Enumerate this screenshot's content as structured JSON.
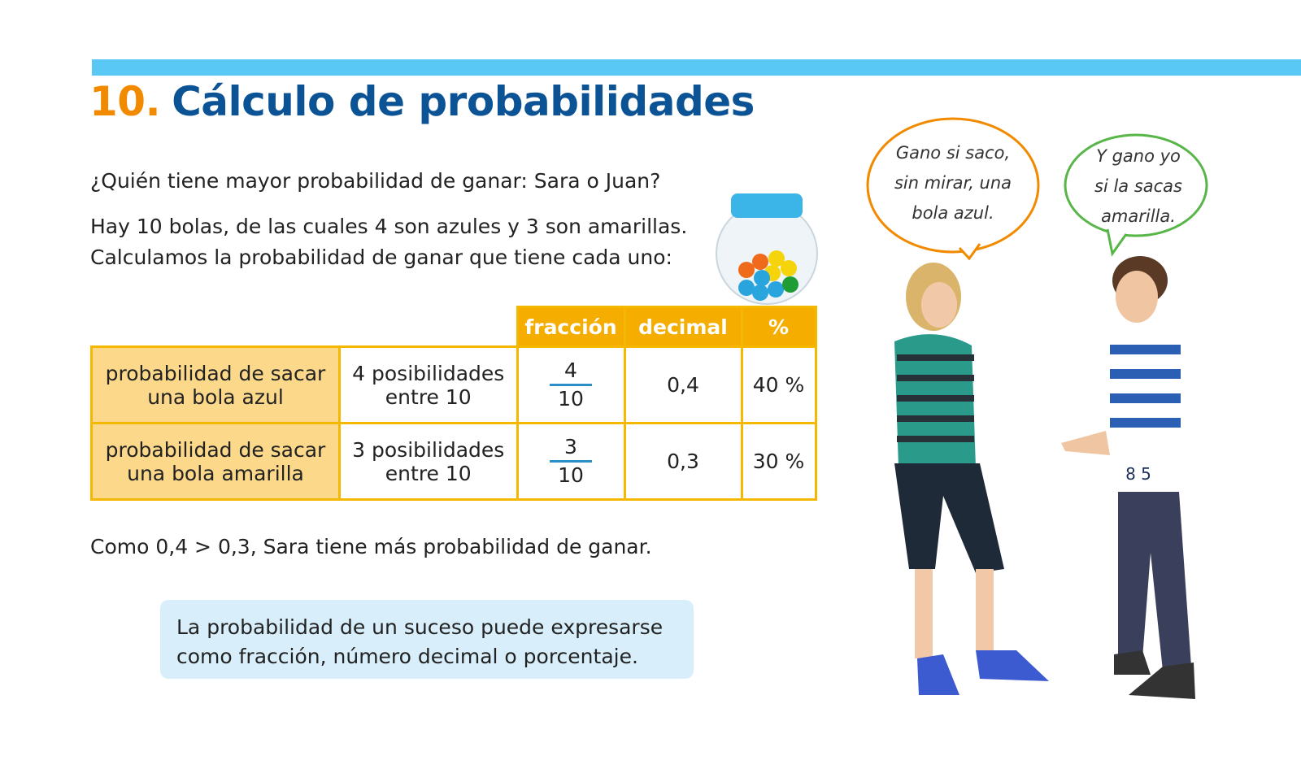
{
  "header": {
    "number": "10.",
    "title": "Cálculo de probabilidades"
  },
  "question": "¿Quién tiene mayor probabilidad de ganar: Sara o Juan?",
  "intro": {
    "lines": [
      "Hay 10 bolas, de las cuales 4 son azules y 3 son amarillas.",
      "Calculamos la probabilidad de ganar que tiene cada uno:"
    ]
  },
  "table": {
    "headers": [
      "fracción",
      "decimal",
      "%"
    ],
    "rows": [
      {
        "label": [
          "probabilidad de sacar",
          "una bola azul"
        ],
        "description": [
          "4 posibilidades",
          "entre 10"
        ],
        "fraction": {
          "numerator": "4",
          "denominator": "10"
        },
        "decimal": "0,4",
        "percent": "40 %"
      },
      {
        "label": [
          "probabilidad de sacar",
          "una bola amarilla"
        ],
        "description": [
          "3 posibilidades",
          "entre 10"
        ],
        "fraction": {
          "numerator": "3",
          "denominator": "10"
        },
        "decimal": "0,3",
        "percent": "30 %"
      }
    ]
  },
  "conclusion": "Como 0,4 > 0,3, Sara tiene más probabilidad de ganar.",
  "note": {
    "lines": [
      "La probabilidad de un suceso puede expresarse",
      "como fracción, número decimal o porcentaje."
    ]
  },
  "bubbles": [
    {
      "lines": [
        "Gano si saco,",
        "sin mirar, una",
        "bola azul."
      ]
    },
    {
      "lines": [
        "Y gano yo",
        "si la sacas",
        "amarilla."
      ]
    }
  ]
}
